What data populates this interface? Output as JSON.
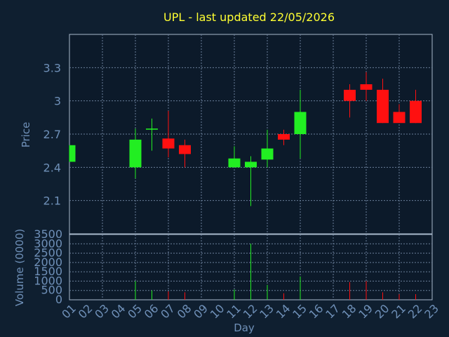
{
  "chart_data": [
    {
      "type": "candlestick",
      "title": "UPL - last updated 22/05/2026",
      "ylabel": "Price",
      "ylim": [
        1.8,
        3.6
      ],
      "yticks": [
        "2.1",
        "2.4",
        "2.7",
        "3",
        "3.3"
      ],
      "grid": true,
      "candles": [
        {
          "day": "01",
          "open": 2.45,
          "high": 2.6,
          "low": 2.45,
          "close": 2.6
        },
        {
          "day": "05",
          "open": 2.4,
          "high": 2.75,
          "low": 2.3,
          "close": 2.65
        },
        {
          "day": "06",
          "open": 2.74,
          "high": 2.84,
          "low": 2.55,
          "close": 2.75
        },
        {
          "day": "07",
          "open": 2.66,
          "high": 2.91,
          "low": 2.49,
          "close": 2.57
        },
        {
          "day": "08",
          "open": 2.6,
          "high": 2.65,
          "low": 2.4,
          "close": 2.52
        },
        {
          "day": "11",
          "open": 2.4,
          "high": 2.59,
          "low": 2.4,
          "close": 2.48
        },
        {
          "day": "12",
          "open": 2.4,
          "high": 2.5,
          "low": 2.05,
          "close": 2.45
        },
        {
          "day": "13",
          "open": 2.47,
          "high": 2.74,
          "low": 2.4,
          "close": 2.57
        },
        {
          "day": "14",
          "open": 2.7,
          "high": 2.74,
          "low": 2.6,
          "close": 2.65
        },
        {
          "day": "15",
          "open": 2.7,
          "high": 3.1,
          "low": 2.48,
          "close": 2.9
        },
        {
          "day": "18",
          "open": 3.1,
          "high": 3.15,
          "low": 2.85,
          "close": 3.0
        },
        {
          "day": "19",
          "open": 3.15,
          "high": 3.26,
          "low": 3.0,
          "close": 3.1
        },
        {
          "day": "20",
          "open": 3.1,
          "high": 3.2,
          "low": 2.8,
          "close": 2.8
        },
        {
          "day": "21",
          "open": 2.9,
          "high": 2.97,
          "low": 2.8,
          "close": 2.8
        },
        {
          "day": "22",
          "open": 3.0,
          "high": 3.1,
          "low": 2.8,
          "close": 2.8
        }
      ]
    },
    {
      "type": "bar",
      "ylabel": "Volume (0000)",
      "xlabel": "Day",
      "ylim": [
        0,
        3500
      ],
      "yticks": [
        "0",
        "500",
        "1000",
        "1500",
        "2000",
        "2500",
        "3000",
        "3500"
      ],
      "categories": [
        "01",
        "02",
        "03",
        "04",
        "05",
        "06",
        "07",
        "08",
        "09",
        "10",
        "11",
        "12",
        "13",
        "14",
        "15",
        "16",
        "17",
        "18",
        "19",
        "20",
        "21",
        "22",
        "23"
      ],
      "bars": [
        {
          "day": "01",
          "value": 0,
          "direction": "down"
        },
        {
          "day": "05",
          "value": 1000,
          "direction": "up"
        },
        {
          "day": "06",
          "value": 500,
          "direction": "up"
        },
        {
          "day": "07",
          "value": 450,
          "direction": "down"
        },
        {
          "day": "08",
          "value": 400,
          "direction": "down"
        },
        {
          "day": "11",
          "value": 550,
          "direction": "up"
        },
        {
          "day": "12",
          "value": 3000,
          "direction": "up"
        },
        {
          "day": "13",
          "value": 800,
          "direction": "up"
        },
        {
          "day": "14",
          "value": 350,
          "direction": "down"
        },
        {
          "day": "15",
          "value": 1250,
          "direction": "up"
        },
        {
          "day": "18",
          "value": 950,
          "direction": "down"
        },
        {
          "day": "19",
          "value": 1000,
          "direction": "down"
        },
        {
          "day": "20",
          "value": 400,
          "direction": "down"
        },
        {
          "day": "21",
          "value": 300,
          "direction": "down"
        },
        {
          "day": "22",
          "value": 300,
          "direction": "down"
        }
      ]
    }
  ],
  "colors": {
    "background": "#0f1f30",
    "plot_background": "#0c1a2a",
    "up": "#22ee22",
    "down": "#ff1010",
    "text": "#6f90b8",
    "title": "#ffff33",
    "grid": "#6a7f99",
    "frame": "#a9b9cc"
  }
}
